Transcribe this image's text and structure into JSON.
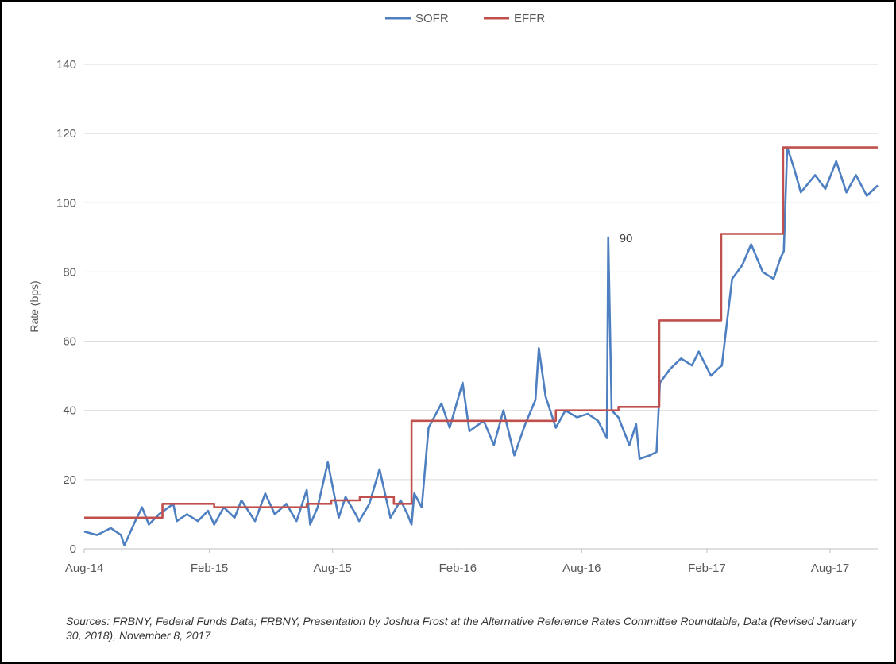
{
  "colors": {
    "sofr": "#4e7fc0",
    "effr": "#c0504d",
    "grid": "#d9d9d9",
    "axis": "#bfbfbf",
    "text": "#595959"
  },
  "source_note": "Sources: FRBNY, Federal Funds Data; FRBNY, Presentation by Joshua Frost at the Alternative Reference Rates Committee Roundtable, Data (Revised January 30, 2018), November 8, 2017",
  "chart_data": {
    "type": "line",
    "title": "",
    "xlabel": "",
    "ylabel": "Rate (bps)",
    "ylim": [
      0,
      140
    ],
    "yticks": [
      0,
      20,
      40,
      60,
      80,
      100,
      120,
      140
    ],
    "xlim": [
      "2014-08-22",
      "2017-10-31"
    ],
    "xticks": [
      {
        "date": "2014-08-22",
        "label": "Aug-14"
      },
      {
        "date": "2015-02-22",
        "label": "Feb-15"
      },
      {
        "date": "2015-08-22",
        "label": "Aug-15"
      },
      {
        "date": "2016-02-22",
        "label": "Feb-16"
      },
      {
        "date": "2016-08-22",
        "label": "Aug-16"
      },
      {
        "date": "2017-02-22",
        "label": "Feb-17"
      },
      {
        "date": "2017-08-22",
        "label": "Aug-17"
      }
    ],
    "grid": true,
    "legend": "top-center",
    "annotations": [
      {
        "text": "90",
        "date": "2016-09-30",
        "value": 90
      }
    ],
    "series": [
      {
        "name": "SOFR",
        "color": "#4e7fc0",
        "x": [
          "2014-08-22",
          "2014-09-10",
          "2014-09-30",
          "2014-10-15",
          "2014-10-20",
          "2014-11-05",
          "2014-11-15",
          "2014-11-25",
          "2014-12-10",
          "2014-12-31",
          "2015-01-05",
          "2015-01-20",
          "2015-02-05",
          "2015-02-20",
          "2015-03-01",
          "2015-03-15",
          "2015-03-31",
          "2015-04-10",
          "2015-04-30",
          "2015-05-15",
          "2015-05-29",
          "2015-06-15",
          "2015-06-30",
          "2015-07-15",
          "2015-07-20",
          "2015-07-31",
          "2015-08-15",
          "2015-08-31",
          "2015-09-10",
          "2015-09-25",
          "2015-09-30",
          "2015-10-15",
          "2015-10-30",
          "2015-11-15",
          "2015-11-30",
          "2015-12-10",
          "2015-12-16",
          "2015-12-20",
          "2015-12-31",
          "2016-01-10",
          "2016-01-29",
          "2016-02-10",
          "2016-02-29",
          "2016-03-10",
          "2016-03-31",
          "2016-04-15",
          "2016-04-29",
          "2016-05-15",
          "2016-05-31",
          "2016-06-15",
          "2016-06-20",
          "2016-06-30",
          "2016-07-15",
          "2016-07-29",
          "2016-08-15",
          "2016-08-31",
          "2016-09-15",
          "2016-09-28",
          "2016-09-30",
          "2016-10-05",
          "2016-10-15",
          "2016-10-31",
          "2016-11-10",
          "2016-11-15",
          "2016-11-30",
          "2016-12-10",
          "2016-12-15",
          "2016-12-30",
          "2017-01-15",
          "2017-01-31",
          "2017-02-10",
          "2017-02-28",
          "2017-03-10",
          "2017-03-16",
          "2017-03-31",
          "2017-04-15",
          "2017-04-28",
          "2017-05-15",
          "2017-05-31",
          "2017-06-10",
          "2017-06-15",
          "2017-06-20",
          "2017-06-30",
          "2017-07-10",
          "2017-07-31",
          "2017-08-15",
          "2017-08-31",
          "2017-09-15",
          "2017-09-29",
          "2017-10-15",
          "2017-10-31"
        ],
        "values": [
          5,
          4,
          6,
          4,
          1,
          8,
          12,
          7,
          10,
          13,
          8,
          10,
          8,
          11,
          7,
          12,
          9,
          14,
          8,
          16,
          10,
          13,
          8,
          17,
          7,
          12,
          25,
          9,
          15,
          10,
          8,
          13,
          23,
          9,
          14,
          10,
          7,
          16,
          12,
          35,
          42,
          35,
          48,
          34,
          37,
          30,
          40,
          27,
          36,
          43,
          58,
          44,
          35,
          40,
          38,
          39,
          37,
          32,
          90,
          40,
          38,
          30,
          36,
          26,
          27,
          28,
          48,
          52,
          55,
          53,
          57,
          50,
          52,
          53,
          78,
          82,
          88,
          80,
          78,
          84,
          86,
          116,
          110,
          103,
          108,
          104,
          112,
          103,
          108,
          102,
          105
        ]
      },
      {
        "name": "EFFR",
        "color": "#c0504d",
        "x": [
          "2014-08-22",
          "2014-10-31",
          "2014-11-01",
          "2014-12-15",
          "2015-01-15",
          "2015-03-01",
          "2015-04-15",
          "2015-06-01",
          "2015-07-15",
          "2015-08-20",
          "2015-10-01",
          "2015-11-20",
          "2015-12-16",
          "2016-01-15",
          "2016-02-26",
          "2016-04-15",
          "2016-06-01",
          "2016-07-15",
          "2016-09-01",
          "2016-10-15",
          "2016-12-14",
          "2017-01-15",
          "2017-02-15",
          "2017-03-15",
          "2017-04-15",
          "2017-05-15",
          "2017-06-14",
          "2017-07-15",
          "2017-08-15",
          "2017-09-15",
          "2017-10-31"
        ],
        "values": [
          9,
          9,
          9,
          13,
          13,
          12,
          12,
          12,
          13,
          14,
          15,
          13,
          37,
          37,
          37,
          37,
          37,
          40,
          40,
          41,
          66,
          66,
          66,
          91,
          91,
          91,
          116,
          116,
          116,
          116,
          116
        ]
      }
    ]
  }
}
